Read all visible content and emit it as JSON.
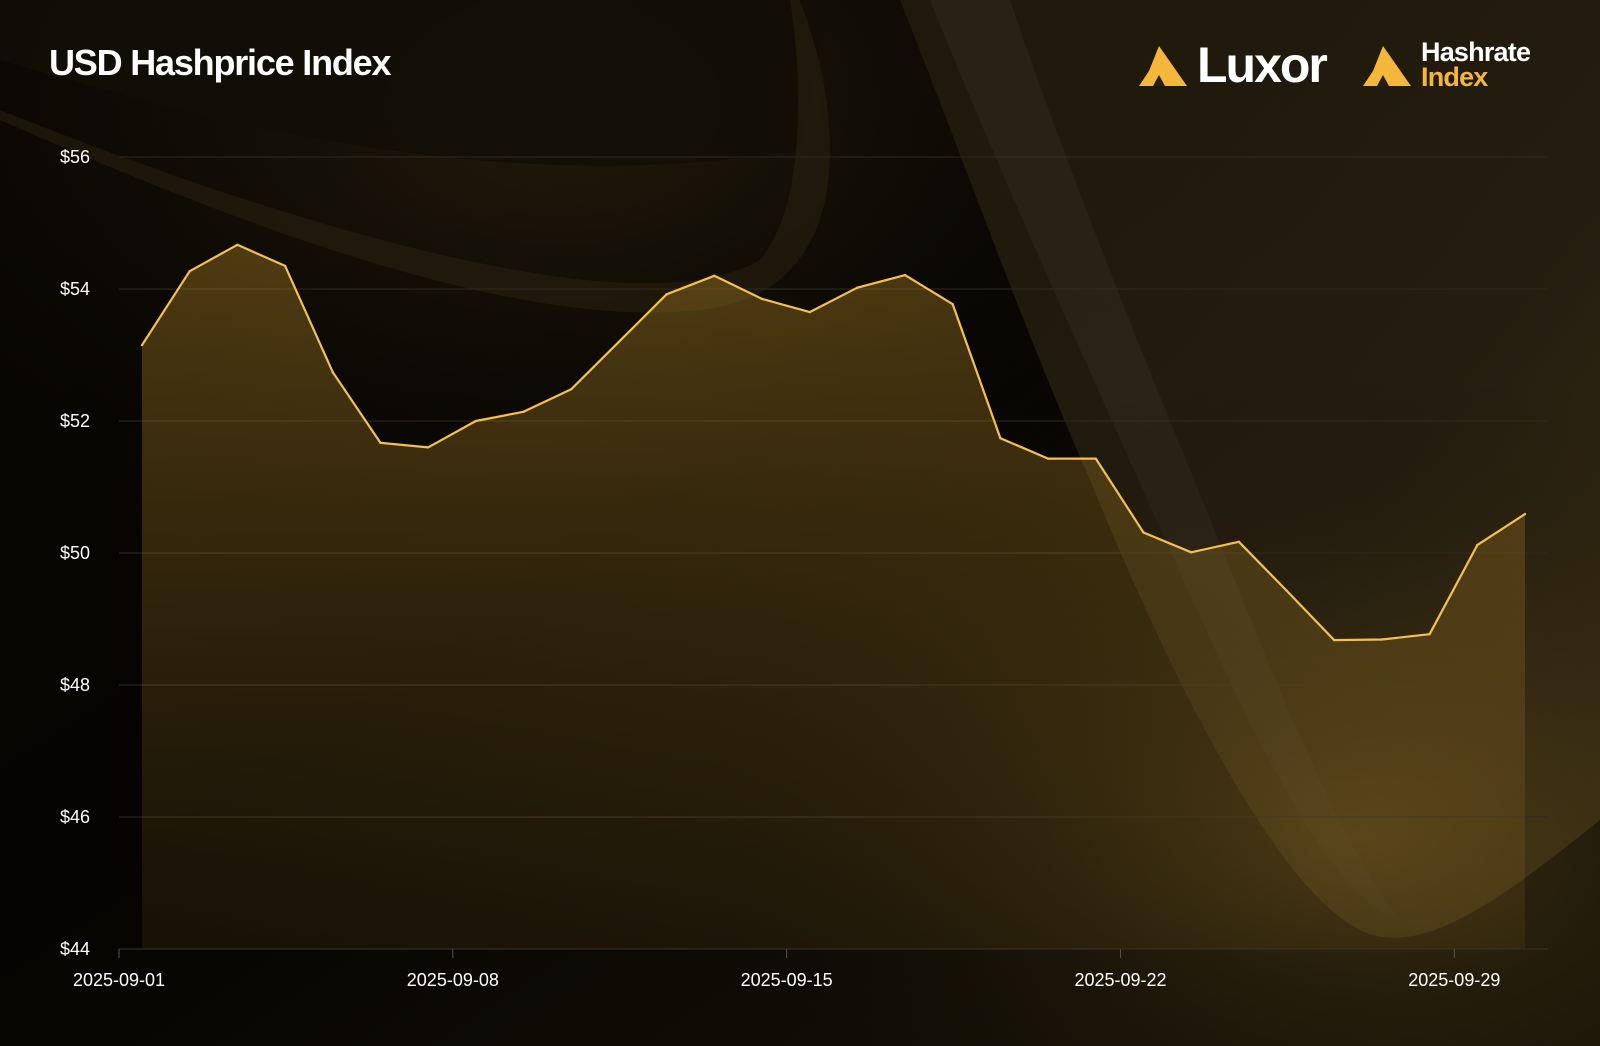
{
  "header": {
    "title": "USD Hashprice Index"
  },
  "brand": {
    "luxor_label": "Luxor",
    "hashrate_label_1": "Hashrate",
    "hashrate_label_2": "Index",
    "luxor_logo_icon": "luxor-mountain-icon",
    "hashrate_logo_icon": "hashrate-index-mountain-icon"
  },
  "colors": {
    "accent": "#f5b63c",
    "line": "#f4c150",
    "background": "#050403",
    "grid": "#2f2a20",
    "text": "#ffffff"
  },
  "chart_data": {
    "type": "area",
    "title": "USD Hashprice Index",
    "xlabel": "",
    "ylabel": "",
    "x_ticks": [
      "2025-09-01",
      "2025-09-08",
      "2025-09-15",
      "2025-09-22",
      "2025-09-29"
    ],
    "y_ticks": [
      "$44",
      "$46",
      "$48",
      "$50",
      "$52",
      "$54",
      "$56"
    ],
    "ylim": [
      44,
      56
    ],
    "xlim": [
      "2025-08-31",
      "2025-09-30"
    ],
    "grid": true,
    "legend": "none",
    "series": [
      {
        "x": [
          "2025-09-01",
          "2025-09-02",
          "2025-09-03",
          "2025-09-04",
          "2025-09-05",
          "2025-09-06",
          "2025-09-07",
          "2025-09-08",
          "2025-09-09",
          "2025-09-10",
          "2025-09-11",
          "2025-09-12",
          "2025-09-13",
          "2025-09-14",
          "2025-09-15",
          "2025-09-16",
          "2025-09-17",
          "2025-09-18",
          "2025-09-19",
          "2025-09-20",
          "2025-09-21",
          "2025-09-22",
          "2025-09-23",
          "2025-09-24",
          "2025-09-25",
          "2025-09-26",
          "2025-09-27",
          "2025-09-28",
          "2025-09-29",
          "2025-09-30"
        ],
        "values": [
          53.15,
          54.27,
          54.67,
          54.35,
          52.74,
          51.67,
          51.6,
          52.0,
          52.14,
          52.48,
          53.2,
          53.92,
          54.2,
          53.85,
          53.65,
          54.02,
          54.21,
          53.77,
          51.74,
          51.43,
          51.43,
          50.31,
          50.01,
          50.17,
          49.43,
          48.68,
          48.69,
          48.77,
          50.12,
          50.59
        ]
      }
    ]
  }
}
